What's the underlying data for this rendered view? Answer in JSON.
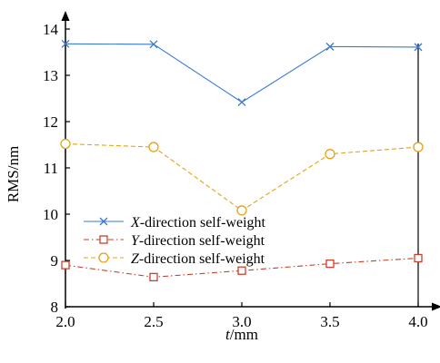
{
  "chart_data": {
    "type": "line",
    "x": [
      2.0,
      2.5,
      3.0,
      3.5,
      4.0
    ],
    "x_tick_labels": [
      "2.0",
      "2.5",
      "3.0",
      "3.5",
      "4.0"
    ],
    "y_tick_values": [
      8,
      9,
      10,
      11,
      12,
      13,
      14
    ],
    "xlim": [
      2.0,
      4.0
    ],
    "ylim": [
      8,
      14
    ],
    "xlabel": {
      "italic": "t",
      "rest": "/mm"
    },
    "ylabel": "RMS/nm",
    "grid": false,
    "legend_position": "lower-left",
    "series": [
      {
        "name_italic": "X",
        "name_rest": "-direction self-weight",
        "color": "#3a7ad1",
        "marker": "x",
        "dash": "solid",
        "values": [
          13.68,
          13.67,
          12.42,
          13.62,
          13.61
        ]
      },
      {
        "name_italic": "Y",
        "name_rest": "-direction self-weight",
        "color": "#c8412b",
        "marker": "square",
        "dash": "dashdot",
        "values": [
          8.9,
          8.64,
          8.78,
          8.93,
          9.05
        ]
      },
      {
        "name_italic": "Z",
        "name_rest": "-direction self-weight",
        "color": "#e0a416",
        "marker": "circle",
        "dash": "dashed",
        "values": [
          11.52,
          11.45,
          10.08,
          11.3,
          11.45
        ]
      }
    ]
  }
}
